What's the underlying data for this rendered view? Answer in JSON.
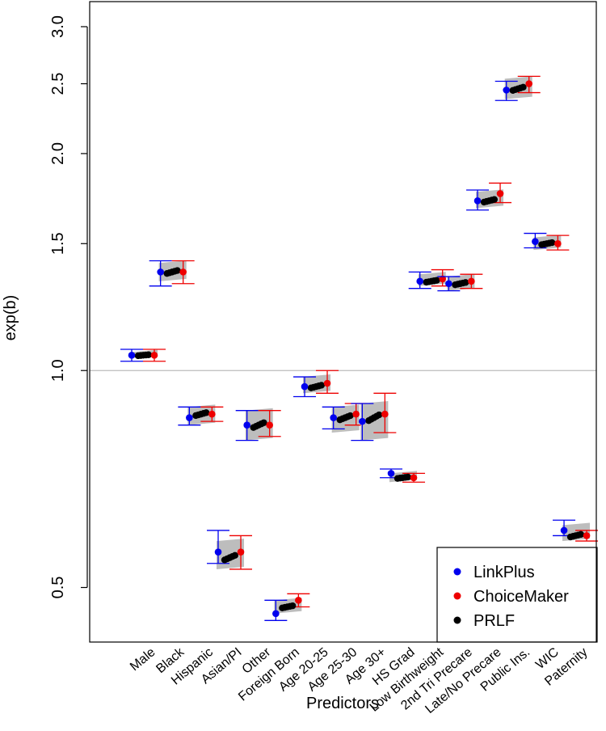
{
  "chart_data": {
    "type": "scatter",
    "subtype": "point-with-error-bars",
    "title": "",
    "xlabel": "Predictors",
    "ylabel": "exp(b)",
    "y_scale": "log",
    "ylim": [
      0.42,
      3.25
    ],
    "yticks": [
      0.5,
      1.0,
      1.5,
      2.0,
      2.5,
      3.0
    ],
    "ytick_labels": [
      "0.5",
      "1.0",
      "1.5",
      "2.0",
      "2.5",
      "3.0"
    ],
    "reference_line": 1.0,
    "categories": [
      "Male",
      "Black",
      "Hispanic",
      "Asian/PI",
      "Other",
      "Foreign Born",
      "Age 20-25",
      "Age 25-30",
      "Age 30+",
      "HS Grad",
      "Low Birthweight",
      "2nd Tri Precare",
      "Late/No Precare",
      "Public Ins.",
      "WIC",
      "Paternity"
    ],
    "legend": {
      "position": "bottom-right",
      "entries": [
        "LinkPlus",
        "ChoiceMaker",
        "PRLF"
      ]
    },
    "series": [
      {
        "name": "LinkPlus",
        "color": "#0000ee",
        "values": [
          1.05,
          1.37,
          0.86,
          0.56,
          0.84,
          0.46,
          0.95,
          0.86,
          0.85,
          0.72,
          1.33,
          1.32,
          1.72,
          2.45,
          1.51,
          0.6
        ],
        "lower": [
          1.03,
          1.31,
          0.84,
          0.54,
          0.8,
          0.45,
          0.92,
          0.83,
          0.8,
          0.71,
          1.3,
          1.29,
          1.67,
          2.37,
          1.48,
          0.59
        ],
        "upper": [
          1.07,
          1.42,
          0.89,
          0.6,
          0.88,
          0.48,
          0.98,
          0.89,
          0.9,
          0.73,
          1.37,
          1.35,
          1.78,
          2.52,
          1.55,
          0.62
        ]
      },
      {
        "name": "ChoiceMaker",
        "color": "#ee0000",
        "values": [
          1.05,
          1.37,
          0.87,
          0.56,
          0.84,
          0.48,
          0.96,
          0.87,
          0.87,
          0.71,
          1.34,
          1.33,
          1.76,
          2.5,
          1.5,
          0.59
        ],
        "lower": [
          1.03,
          1.32,
          0.85,
          0.53,
          0.81,
          0.47,
          0.93,
          0.84,
          0.82,
          0.7,
          1.31,
          1.3,
          1.71,
          2.43,
          1.47,
          0.58
        ],
        "upper": [
          1.07,
          1.42,
          0.89,
          0.59,
          0.88,
          0.49,
          1.0,
          0.9,
          0.93,
          0.72,
          1.38,
          1.36,
          1.82,
          2.56,
          1.54,
          0.6
        ]
      },
      {
        "name": "PRLF",
        "color": "#000000",
        "values": [
          1.05,
          1.37,
          0.87,
          0.55,
          0.84,
          0.47,
          0.95,
          0.86,
          0.86,
          0.71,
          1.33,
          1.32,
          1.72,
          2.46,
          1.5,
          0.59
        ],
        "band_lower": [
          1.04,
          1.33,
          0.84,
          0.53,
          0.8,
          0.46,
          0.93,
          0.82,
          0.8,
          0.7,
          1.31,
          1.29,
          1.68,
          2.38,
          1.47,
          0.58
        ],
        "band_upper": [
          1.06,
          1.41,
          0.89,
          0.58,
          0.88,
          0.48,
          0.98,
          0.89,
          0.9,
          0.72,
          1.36,
          1.35,
          1.77,
          2.54,
          1.53,
          0.61
        ]
      }
    ]
  }
}
